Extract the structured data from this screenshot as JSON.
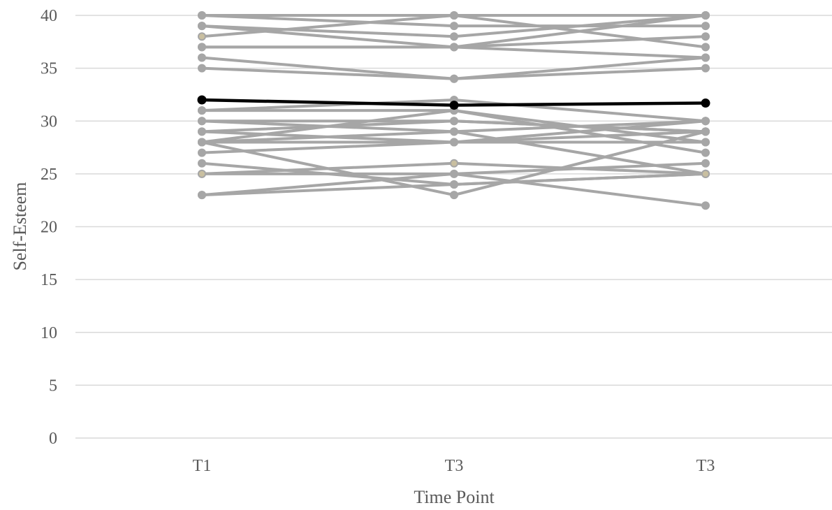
{
  "chart_data": {
    "type": "line",
    "title": "",
    "xlabel": "Time Point",
    "ylabel": "Self-Esteem",
    "categories": [
      "T1",
      "T3",
      "T3"
    ],
    "ylim": [
      0,
      40
    ],
    "yticks": [
      "0",
      "5",
      "10",
      "15",
      "20",
      "25",
      "30",
      "35",
      "40"
    ],
    "grid": true,
    "legend": "none",
    "colors": {
      "individual": "#a6a6a6",
      "mean": "#000000",
      "highlight": "#c9bfa0"
    },
    "series": [
      {
        "values": [
          40,
          40,
          40
        ]
      },
      {
        "values": [
          40,
          39,
          39
        ]
      },
      {
        "values": [
          39,
          38,
          40
        ]
      },
      {
        "values": [
          39,
          37,
          38
        ]
      },
      {
        "values": [
          38,
          40,
          37
        ]
      },
      {
        "values": [
          37,
          37,
          40
        ]
      },
      {
        "values": [
          37,
          37,
          36
        ]
      },
      {
        "values": [
          36,
          34,
          36
        ]
      },
      {
        "values": [
          35,
          34,
          35
        ]
      },
      {
        "values": [
          31,
          32,
          30
        ]
      },
      {
        "values": [
          31,
          31,
          28
        ]
      },
      {
        "values": [
          30,
          29,
          30
        ]
      },
      {
        "values": [
          30,
          30,
          29
        ]
      },
      {
        "values": [
          29,
          30,
          29
        ]
      },
      {
        "values": [
          29,
          28,
          30
        ]
      },
      {
        "values": [
          28,
          31,
          27
        ]
      },
      {
        "values": [
          28,
          29,
          25
        ]
      },
      {
        "values": [
          28,
          28,
          29
        ]
      },
      {
        "values": [
          27,
          28,
          28
        ]
      },
      {
        "values": [
          26,
          24,
          25
        ]
      },
      {
        "values": [
          25,
          25,
          26
        ]
      },
      {
        "values": [
          25,
          26,
          25
        ]
      },
      {
        "values": [
          28,
          23,
          29
        ]
      },
      {
        "values": [
          23,
          25,
          22
        ]
      },
      {
        "values": [
          23,
          24,
          25
        ]
      },
      {
        "values": [
          32,
          31.5,
          31.7
        ],
        "is_mean": true
      }
    ]
  }
}
